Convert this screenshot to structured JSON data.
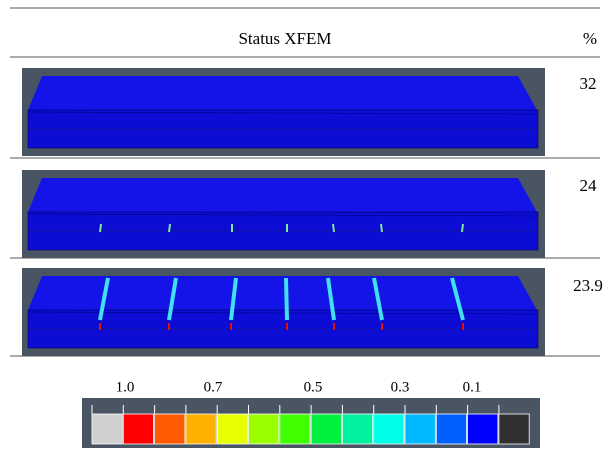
{
  "table": {
    "header": [
      "Status XFEM",
      "%"
    ],
    "rows": [
      [
        "32"
      ],
      [
        "24"
      ],
      [
        "23.9"
      ]
    ]
  },
  "legend": {
    "labels": [
      "1.0",
      "0.7",
      "0.5",
      "0.3",
      "0.1"
    ]
  }
}
